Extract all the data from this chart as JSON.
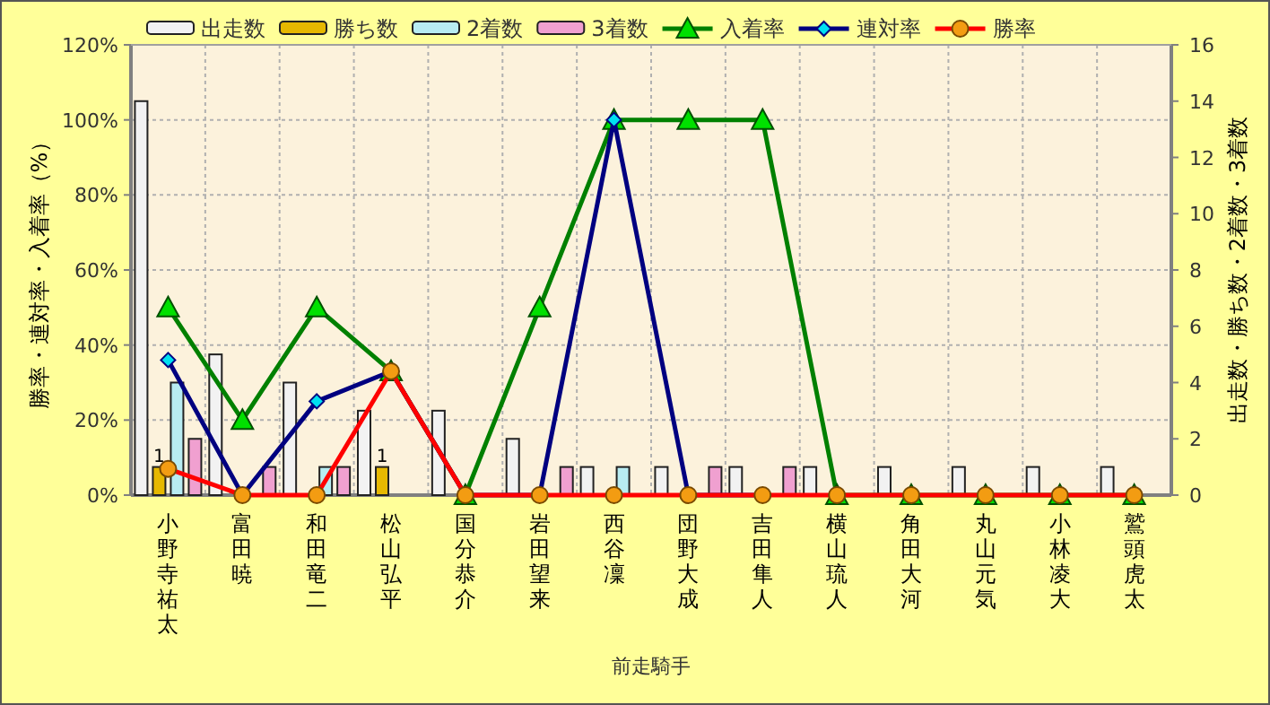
{
  "chart_data": {
    "type": "bar",
    "categories": [
      "小野寺祐太",
      "富田暁",
      "和田竜二",
      "松山弘平",
      "国分恭介",
      "岩田望来",
      "西谷凜",
      "団野大成",
      "吉田隼人",
      "横山琉人",
      "角田大河",
      "丸山元気",
      "小林凌大",
      "鷲頭虎太"
    ],
    "series": [
      {
        "name": "出走数",
        "type": "bar",
        "axis": "y2",
        "color": "#f2f2f2",
        "values": [
          14,
          5,
          4,
          3,
          3,
          2,
          1,
          1,
          1,
          1,
          1,
          1,
          1,
          1
        ]
      },
      {
        "name": "勝ち数",
        "type": "bar",
        "axis": "y2",
        "color": "#e6b800",
        "values": [
          1,
          0,
          0,
          1,
          0,
          0,
          0,
          0,
          0,
          0,
          0,
          0,
          0,
          0
        ],
        "value_labels": [
          "1",
          null,
          null,
          "1",
          null,
          null,
          null,
          null,
          null,
          null,
          null,
          null,
          null,
          null
        ]
      },
      {
        "name": "2着数",
        "type": "bar",
        "axis": "y2",
        "color": "#b8ecf2",
        "values": [
          4,
          0,
          1,
          0,
          0,
          0,
          1,
          0,
          0,
          0,
          0,
          0,
          0,
          0
        ]
      },
      {
        "name": "3着数",
        "type": "bar",
        "axis": "y2",
        "color": "#f0a0d0",
        "values": [
          2,
          1,
          1,
          0,
          0,
          1,
          0,
          1,
          1,
          0,
          0,
          0,
          0,
          0
        ]
      },
      {
        "name": "入着率",
        "type": "line",
        "axis": "y",
        "color": "#008000",
        "marker": "triangle",
        "values": [
          50,
          20,
          50,
          33,
          0,
          50,
          100,
          100,
          100,
          0,
          0,
          0,
          0,
          0
        ]
      },
      {
        "name": "連対率",
        "type": "line",
        "axis": "y",
        "color": "#000080",
        "marker": "diamond",
        "values": [
          36,
          0,
          25,
          33,
          0,
          0,
          100,
          0,
          0,
          null,
          null,
          null,
          null,
          null
        ]
      },
      {
        "name": "勝率",
        "type": "line",
        "axis": "y",
        "color": "#ff0000",
        "marker": "circle",
        "values": [
          7,
          0,
          0,
          33,
          0,
          0,
          0,
          0,
          0,
          0,
          0,
          0,
          0,
          0
        ]
      }
    ],
    "xlabel": "前走騎手",
    "ylabel": "勝率・連対率・入着率（%）",
    "y2label": "出走数・勝ち数・2着数・3着数",
    "ylim": [
      0,
      120
    ],
    "yticks": [
      {
        "value": 0,
        "label": "0%"
      },
      {
        "value": 20,
        "label": "20%"
      },
      {
        "value": 40,
        "label": "40%"
      },
      {
        "value": 60,
        "label": "60%"
      },
      {
        "value": 80,
        "label": "80%"
      },
      {
        "value": 100,
        "label": "100%"
      },
      {
        "value": 120,
        "label": "120%"
      }
    ],
    "y2lim": [
      0,
      16
    ],
    "y2ticks": [
      0,
      2,
      4,
      6,
      8,
      10,
      12,
      14,
      16
    ],
    "grid": true,
    "legend": "top"
  }
}
